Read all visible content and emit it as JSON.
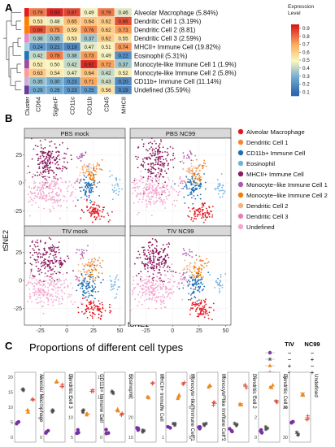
{
  "panels": {
    "A": "A",
    "B": "B",
    "C": "C"
  },
  "heatmap": {
    "columns": [
      "Cluster",
      "CD64",
      "SiglecF",
      "CD11c",
      "CD11b",
      "CD45",
      "MHCII"
    ],
    "legend_title": "Expression\nLevel",
    "legend_ticks": [
      "0.9",
      "0.8",
      "0.7",
      "0.6",
      "0.5",
      "0.4",
      "0.3",
      "0.2",
      "0.1"
    ],
    "rows": [
      {
        "label": "Alveolar Macrophage (5.84%)",
        "cluster_color": "#e41a1c",
        "values": [
          0.79,
          0.93,
          0.87,
          0.49,
          0.79,
          0.46
        ]
      },
      {
        "label": "Dendritic Cell 1 (3.19%)",
        "cluster_color": "#ff7f00",
        "values": [
          0.53,
          0.48,
          0.65,
          0.64,
          0.62,
          0.86
        ]
      },
      {
        "label": "Dendritic Cell 2 (8.81)",
        "cluster_color": "#ff7f00",
        "values": [
          0.86,
          0.75,
          0.59,
          0.76,
          0.62,
          0.73
        ]
      },
      {
        "label": "Dendritic Cell 3 (2.59%)",
        "cluster_color": "#e78ac3",
        "values": [
          0.38,
          0.35,
          0.53,
          0.37,
          0.62,
          0.55
        ]
      },
      {
        "label": "MHCII+ Immune Cell (19.82%)",
        "cluster_color": "#a6cee3",
        "values": [
          0.24,
          0.21,
          0.19,
          0.47,
          0.51,
          0.74
        ]
      },
      {
        "label": "Eosinophil (5.31%)",
        "cluster_color": "#1f78b4",
        "values": [
          0.42,
          0.78,
          0.38,
          0.73,
          0.49,
          0.22
        ]
      },
      {
        "label": "Monocyte-like Immune Cell 1 (1.9%)",
        "cluster_color": "#984ea3",
        "values": [
          0.52,
          0.5,
          0.42,
          0.92,
          0.72,
          0.37
        ]
      },
      {
        "label": "Monocyte-like Immune Cell 2 (5.8%)",
        "cluster_color": "#fb9a99",
        "values": [
          0.63,
          0.54,
          0.47,
          0.64,
          0.42,
          0.52
        ]
      },
      {
        "label": "CD11b+ Immune Cell (11.14%)",
        "cluster_color": "#cab2d6",
        "values": [
          0.35,
          0.3,
          0.23,
          0.71,
          0.43,
          0.2
        ]
      },
      {
        "label": "Undefined (35.59%)",
        "cluster_color": "#6a3d9a",
        "values": [
          0.29,
          0.28,
          0.23,
          0.25,
          0.56,
          0.19
        ]
      }
    ]
  },
  "tsne": {
    "xlabel": "tSNE1",
    "ylabel": "tSNE2",
    "xticks": [
      "-25",
      "0",
      "25",
      "50"
    ],
    "yticks": [
      "25",
      "0",
      "-25"
    ],
    "facets": [
      "PBS mock",
      "PBS NC99",
      "TIV mock",
      "TIV NC99"
    ],
    "legend": [
      {
        "label": "Alveolar Macrophage",
        "color": "#e8141e"
      },
      {
        "label": "Dendritic Cell 1",
        "color": "#f0883c"
      },
      {
        "label": "CD11b+ Immune Cell",
        "color": "#1f6fb4"
      },
      {
        "label": "Eosinophil",
        "color": "#6fb3e0"
      },
      {
        "label": "MHCII+ Immune Cell",
        "color": "#8b1a5e"
      },
      {
        "label": "Monocyte−like Immune Cell 1",
        "color": "#b05bb0"
      },
      {
        "label": "Monocyte−like Immune Cell 2",
        "color": "#f57c00"
      },
      {
        "label": "Dendritic Cell 2",
        "color": "#f4b183"
      },
      {
        "label": "Dendritic Cell 3",
        "color": "#e97fb5"
      },
      {
        "label": "Undefined",
        "color": "#f4a6d0"
      }
    ]
  },
  "proportions": {
    "title": "Proportions of different cell types",
    "legend_headers": [
      "TIV",
      "NC99"
    ],
    "legend_rows": [
      [
        "−",
        "−"
      ],
      [
        "−",
        "+"
      ],
      [
        "+",
        "−"
      ],
      [
        "+",
        "+"
      ]
    ],
    "groups": [
      {
        "label": "Alveolar Macrophage",
        "ticks": [
          "20",
          "15",
          "10",
          "5",
          "0"
        ]
      },
      {
        "label": "Dendritic Cell 3",
        "ticks": [
          "6",
          "4",
          "2",
          "0"
        ]
      },
      {
        "label": "CD11b+ Immune Cell",
        "ticks": [
          "20",
          "15",
          "10",
          "5"
        ]
      },
      {
        "label": "Eosinophil",
        "ticks": [
          "15",
          "10",
          "5",
          "0"
        ]
      },
      {
        "label": "MHCII+ Immune Cell",
        "ticks": [
          "30",
          "25",
          "20",
          "15"
        ]
      },
      {
        "label": "Monocyte−like Immune Cell 1",
        "ticks": [
          "3",
          "2",
          "1"
        ]
      },
      {
        "label": "Monocyte−like Immune Cell 2",
        "ticks": [
          "1.2",
          "0.8",
          "0.4"
        ]
      },
      {
        "label": "Dendritic Cell 2",
        "ticks": [
          "4",
          "3",
          "2",
          "1"
        ]
      },
      {
        "label": "Dendritic Cell 3",
        "ticks": [
          "6",
          "4",
          "2",
          "0"
        ]
      },
      {
        "label": "Undefined",
        "ticks": [
          "40",
          "35",
          "30"
        ]
      }
    ]
  }
}
